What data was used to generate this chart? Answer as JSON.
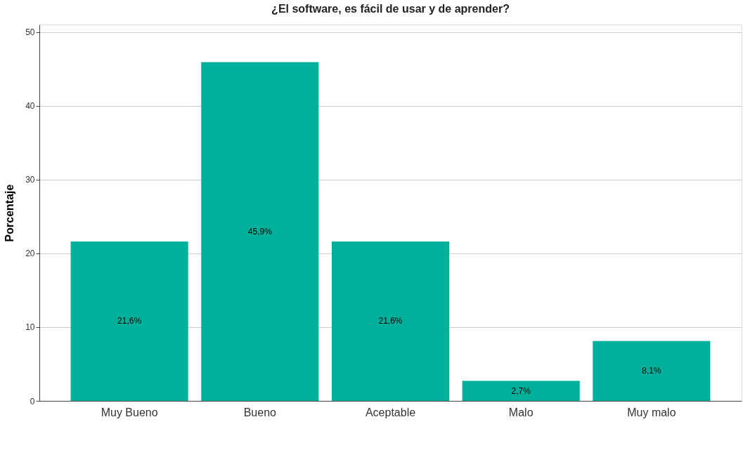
{
  "chart_data": {
    "type": "bar",
    "title": "¿El software, es fácil de usar y de aprender?",
    "ylabel": "Porcentaje",
    "categories": [
      "Muy Bueno",
      "Bueno",
      "Aceptable",
      "Malo",
      "Muy malo"
    ],
    "values": [
      21.6,
      45.9,
      21.6,
      2.7,
      8.1
    ],
    "value_labels": [
      "21,6%",
      "45,9%",
      "21,6%",
      "2,7%",
      "8,1%"
    ],
    "color": "#00b09b",
    "ylim": [
      0,
      51
    ],
    "yticks": [
      0,
      10,
      20,
      30,
      40,
      50
    ],
    "grid": "y"
  }
}
